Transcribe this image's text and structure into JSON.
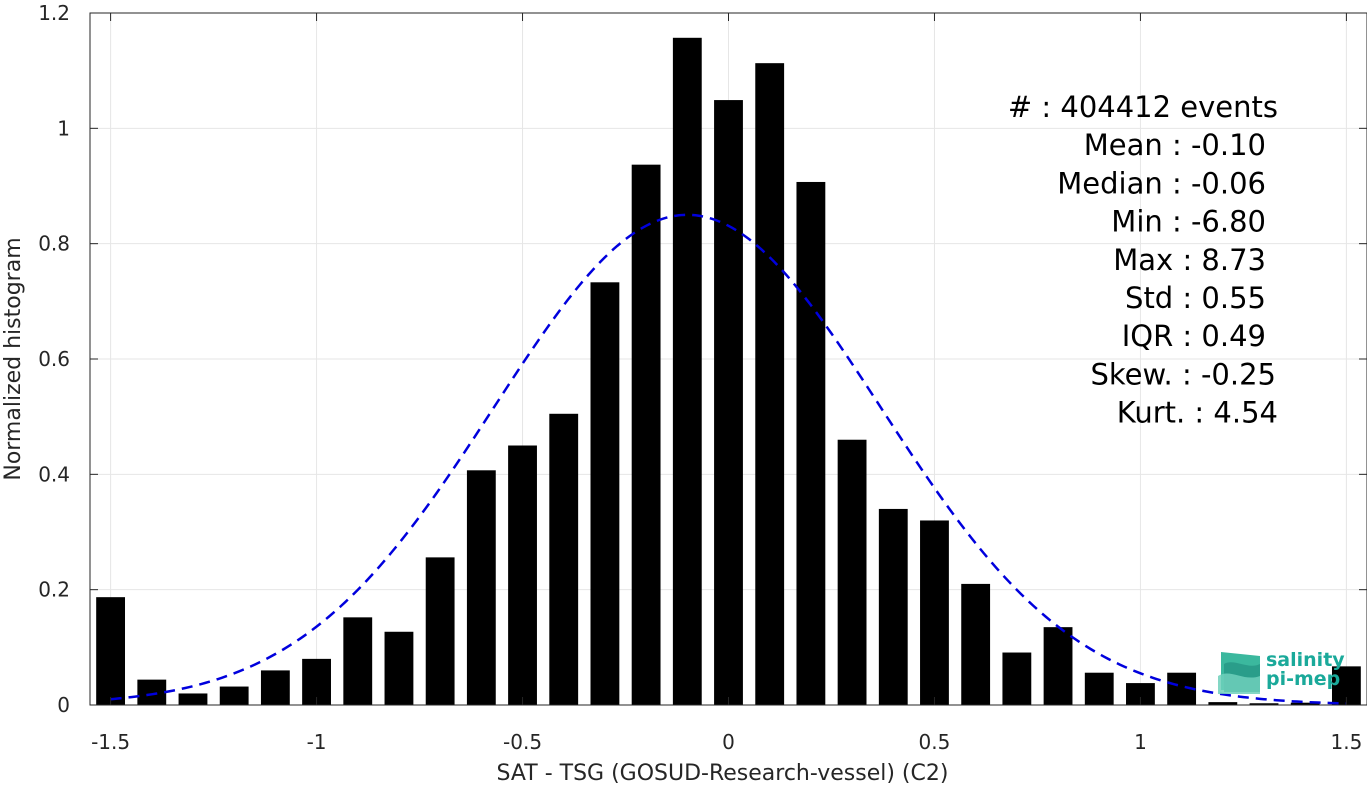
{
  "chart_data": {
    "type": "bar",
    "xlabel": "SAT - TSG (GOSUD-Research-vessel) (C2)",
    "ylabel": "Normalized histogram",
    "xlim": [
      -1.55,
      1.55
    ],
    "ylim": [
      0,
      1.2
    ],
    "xticks": [
      -1.5,
      -1,
      -0.5,
      0,
      0.5,
      1,
      1.5
    ],
    "xtick_labels": [
      "-1.5",
      "-1",
      "-0.5",
      "0",
      "0.5",
      "1",
      "1.5"
    ],
    "yticks": [
      0,
      0.2,
      0.4,
      0.6,
      0.8,
      1,
      1.2
    ],
    "ytick_labels": [
      "0",
      "0.2",
      "0.4",
      "0.6",
      "0.8",
      "1",
      "1.2"
    ],
    "grid": true,
    "bar_color": "#000000",
    "fit_color": "#0000dd",
    "bar_width": 0.07,
    "x": [
      -1.5,
      -1.4,
      -1.3,
      -1.2,
      -1.1,
      -1.0,
      -0.9,
      -0.8,
      -0.7,
      -0.6,
      -0.5,
      -0.4,
      -0.3,
      -0.2,
      -0.1,
      0.0,
      0.1,
      0.2,
      0.3,
      0.4,
      0.5,
      0.6,
      0.7,
      0.8,
      0.9,
      1.0,
      1.1,
      1.2,
      1.3,
      1.4,
      1.5
    ],
    "values": [
      0.187,
      0.044,
      0.02,
      0.032,
      0.06,
      0.08,
      0.152,
      0.127,
      0.256,
      0.407,
      0.45,
      0.505,
      0.733,
      0.937,
      1.157,
      1.049,
      1.113,
      0.907,
      0.46,
      0.34,
      0.32,
      0.21,
      0.091,
      0.135,
      0.056,
      0.038,
      0.056,
      0.005,
      0.003,
      0.004,
      0.067
    ],
    "gaussian_fit": {
      "mean": -0.1,
      "peak": 0.85,
      "sigma": 0.47
    },
    "stats_lines": [
      "#  : 404412 events",
      "Mean : -0.10",
      "Median : -0.06",
      "Min : -6.80",
      "Max : 8.73",
      "Std : 0.55",
      "IQR : 0.49",
      "Skew. : -0.25",
      "Kurt. : 4.54"
    ]
  },
  "logo": {
    "line1": "salinity",
    "line2": "pi-mep",
    "color": "#1aa99a"
  }
}
